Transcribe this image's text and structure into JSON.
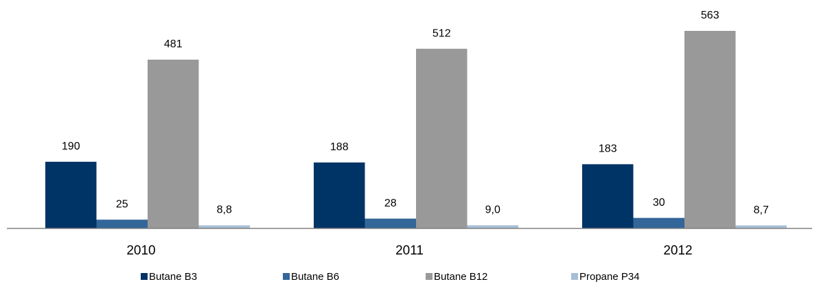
{
  "chart_data": {
    "type": "bar",
    "categories": [
      "2010",
      "2011",
      "2012"
    ],
    "series": [
      {
        "name": "Butane B3",
        "color": "#003366",
        "values": [
          190,
          188,
          183
        ]
      },
      {
        "name": "Butane B6",
        "color": "#336699",
        "values": [
          25,
          28,
          30
        ]
      },
      {
        "name": "Butane B12",
        "color": "#999999",
        "values": [
          481,
          512,
          563
        ]
      },
      {
        "name": "Propane P34",
        "color": "#a6bfd6",
        "values": [
          8.8,
          9.0,
          8.7
        ],
        "value_labels": [
          "8,8",
          "9,0",
          "8,7"
        ]
      }
    ],
    "legend": "bottom"
  }
}
